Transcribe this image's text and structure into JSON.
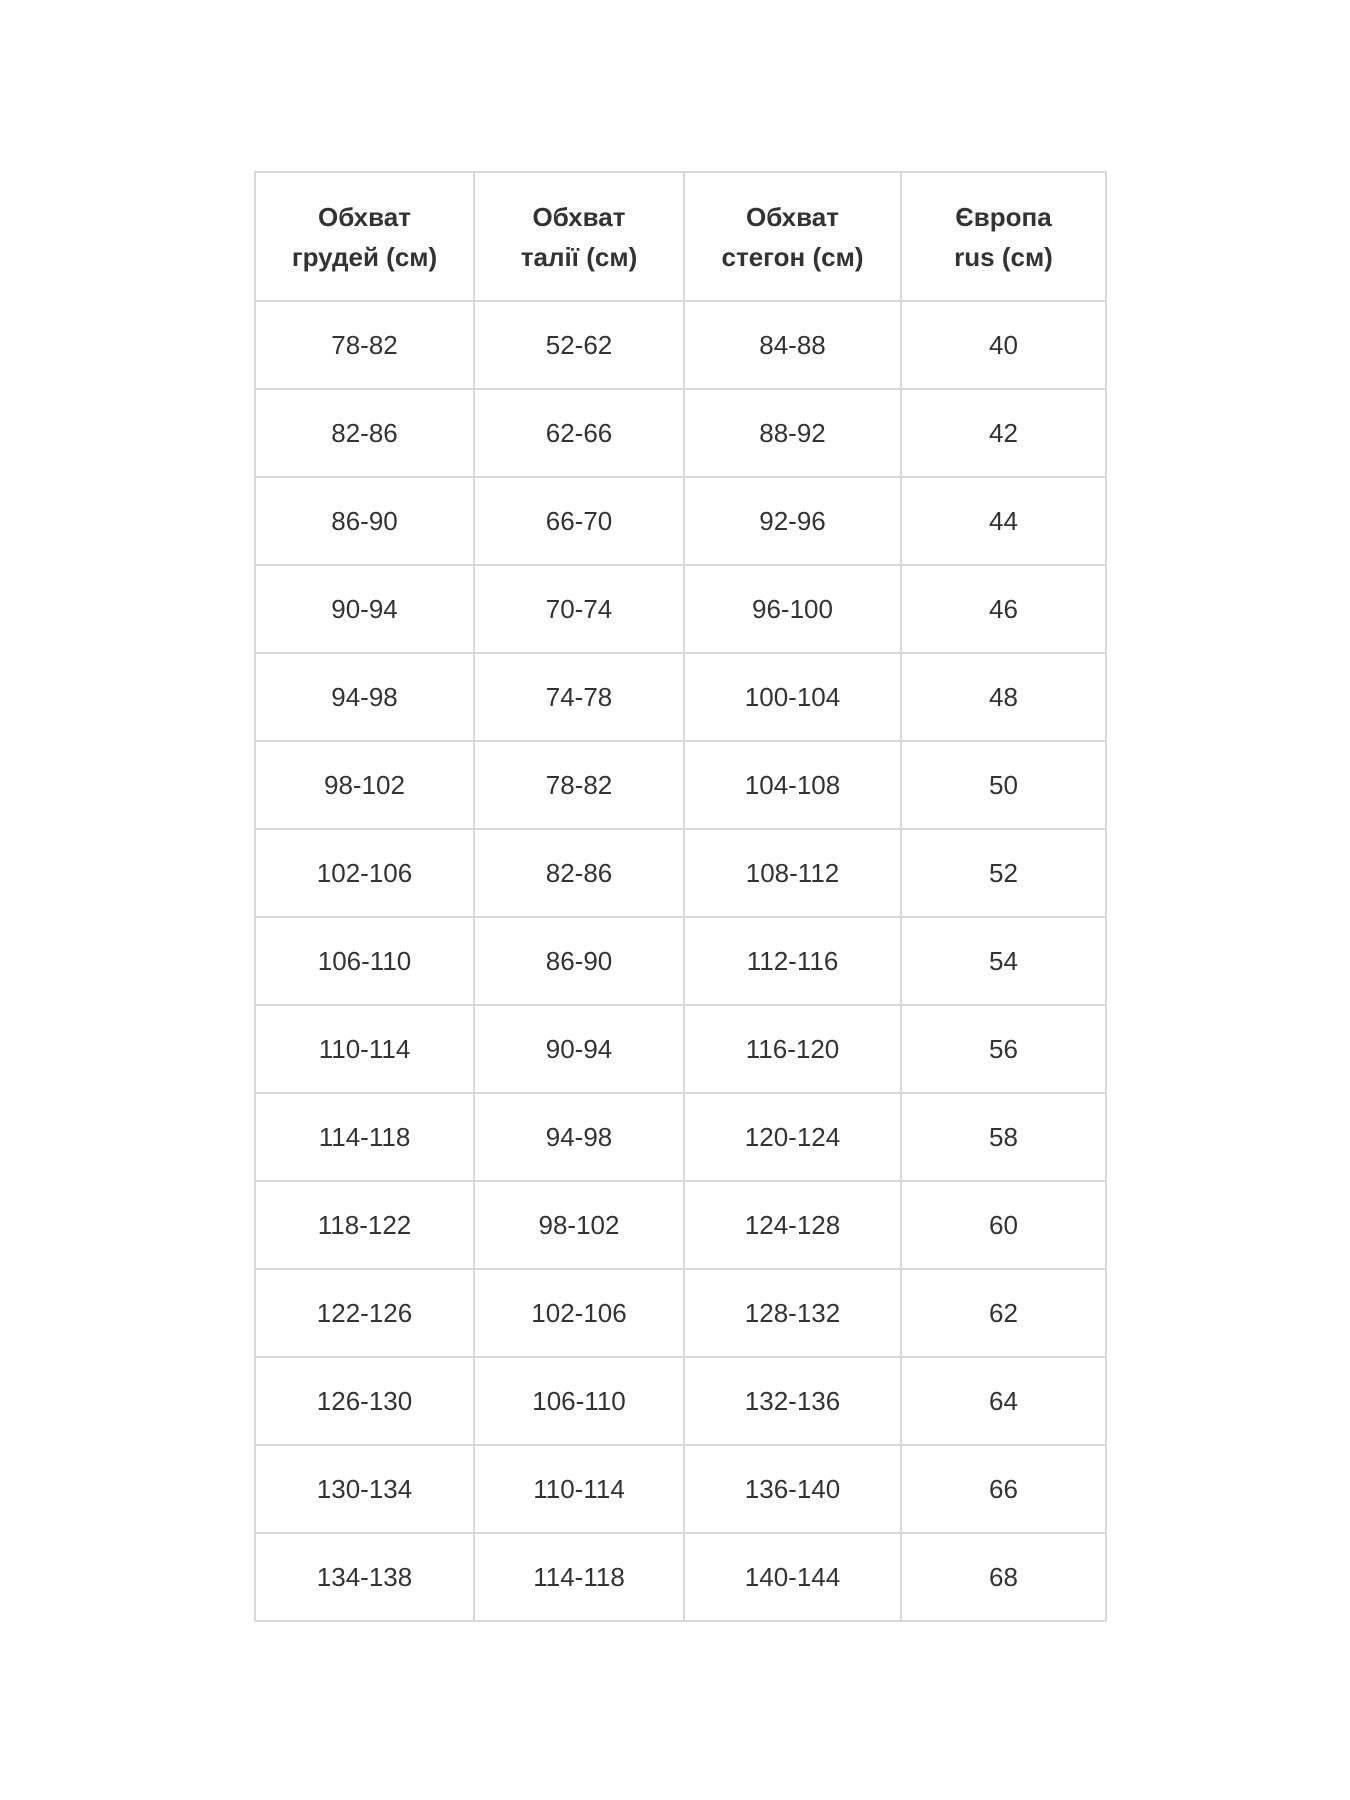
{
  "headers": [
    [
      "Обхват",
      "грудей (см)"
    ],
    [
      "Обхват",
      "талії (см)"
    ],
    [
      "Обхват",
      "стегон (см)"
    ],
    [
      "Європа",
      "rus (см)"
    ]
  ],
  "rows": [
    [
      "78-82",
      "52-62",
      "84-88",
      "40"
    ],
    [
      "82-86",
      "62-66",
      "88-92",
      "42"
    ],
    [
      "86-90",
      "66-70",
      "92-96",
      "44"
    ],
    [
      "90-94",
      "70-74",
      "96-100",
      "46"
    ],
    [
      "94-98",
      "74-78",
      "100-104",
      "48"
    ],
    [
      "98-102",
      "78-82",
      "104-108",
      "50"
    ],
    [
      "102-106",
      "82-86",
      "108-112",
      "52"
    ],
    [
      "106-110",
      "86-90",
      "112-116",
      "54"
    ],
    [
      "110-114",
      "90-94",
      "116-120",
      "56"
    ],
    [
      "114-118",
      "94-98",
      "120-124",
      "58"
    ],
    [
      "118-122",
      "98-102",
      "124-128",
      "60"
    ],
    [
      "122-126",
      "102-106",
      "128-132",
      "62"
    ],
    [
      "126-130",
      "106-110",
      "132-136",
      "64"
    ],
    [
      "130-134",
      "110-114",
      "136-140",
      "66"
    ],
    [
      "134-138",
      "114-118",
      "140-144",
      "68"
    ]
  ]
}
